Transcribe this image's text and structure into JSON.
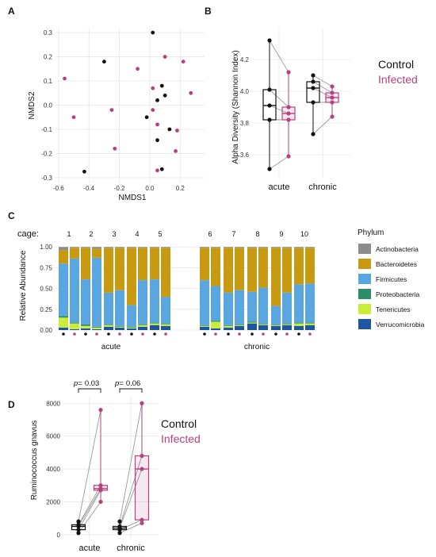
{
  "colors": {
    "control": "#111111",
    "infected": "#b5427f",
    "grid": "#e6e6e6",
    "line": "#9a9a9a"
  },
  "panels": {
    "A": {
      "letter": "A",
      "xlabel": "NMDS1",
      "ylabel": "NMDS2"
    },
    "B": {
      "letter": "B",
      "ylabel": "Alpha Diversity (Shannon Index)",
      "legend_control": "Control",
      "legend_infected": "Infected"
    },
    "C": {
      "letter": "C",
      "ylabel": "Relative Abundance",
      "cage_label": "cage:",
      "group_acute": "acute",
      "group_chronic": "chronic",
      "legend_title": "Phylum"
    },
    "D": {
      "letter": "D",
      "ylabel": "Ruminococcus gnavus",
      "p_acute": "0.03",
      "p_chronic": "0.06",
      "p_prefix": "p=",
      "legend_control": "Control",
      "legend_infected": "Infected"
    }
  },
  "chart_data": [
    {
      "type": "scatter",
      "panel": "A",
      "xlabel": "NMDS1",
      "ylabel": "NMDS2",
      "xlim": [
        -0.62,
        0.36
      ],
      "ylim": [
        -0.32,
        0.32
      ],
      "xticks": [
        -0.6,
        -0.4,
        -0.2,
        0.0,
        0.2
      ],
      "xtick_labels": [
        "-0.6",
        "-0.4",
        "-0.2",
        "0.0",
        "0.2"
      ],
      "yticks": [
        -0.3,
        -0.2,
        -0.1,
        0.0,
        0.1,
        0.2,
        0.3
      ],
      "ytick_labels": [
        "-0.3",
        "-0.2",
        "-0.1",
        "0.0",
        "0.1",
        "0.2",
        "0.3"
      ],
      "grid": true,
      "series": [
        {
          "name": "Control",
          "color": "#111111",
          "points": [
            [
              0.02,
              0.3
            ],
            [
              -0.3,
              0.18
            ],
            [
              0.08,
              0.08
            ],
            [
              0.1,
              0.04
            ],
            [
              0.05,
              0.02
            ],
            [
              -0.02,
              -0.05
            ],
            [
              0.13,
              -0.1
            ],
            [
              -0.43,
              -0.275
            ],
            [
              0.05,
              -0.145
            ],
            [
              0.08,
              -0.265
            ]
          ]
        },
        {
          "name": "Infected",
          "color": "#b5427f",
          "points": [
            [
              -0.56,
              0.11
            ],
            [
              -0.08,
              0.15
            ],
            [
              0.1,
              0.2
            ],
            [
              0.22,
              0.18
            ],
            [
              0.27,
              0.05
            ],
            [
              0.02,
              0.07
            ],
            [
              0.02,
              -0.02
            ],
            [
              -0.25,
              -0.02
            ],
            [
              0.05,
              -0.08
            ],
            [
              -0.23,
              -0.18
            ],
            [
              0.18,
              -0.105
            ],
            [
              0.17,
              -0.19
            ],
            [
              0.05,
              -0.27
            ],
            [
              -0.5,
              -0.05
            ]
          ]
        }
      ]
    },
    {
      "type": "box",
      "panel": "B",
      "ylabel": "Alpha Diversity (Shannon Index)",
      "ylim": [
        3.45,
        4.4
      ],
      "yticks": [
        3.6,
        3.8,
        4.0,
        4.2
      ],
      "ytick_labels": [
        "3.6",
        "3.8",
        "4.0",
        "4.2"
      ],
      "categories": [
        "acute",
        "chronic"
      ],
      "series": [
        {
          "name": "Control",
          "values": {
            "acute": [
              4.32,
              4.01,
              3.91,
              3.82,
              3.51
            ],
            "chronic": [
              4.1,
              4.06,
              4.02,
              3.93,
              3.73
            ]
          }
        },
        {
          "name": "Infected",
          "values": {
            "acute": [
              4.12,
              3.9,
              3.86,
              3.82,
              3.59
            ],
            "chronic": [
              4.03,
              3.99,
              3.96,
              3.93,
              3.84
            ]
          }
        }
      ]
    },
    {
      "type": "bar",
      "panel": "C",
      "stacked": true,
      "ylabel": "Relative Abundance",
      "ylim": [
        0,
        1.05
      ],
      "yticks": [
        0.0,
        0.25,
        0.5,
        0.75,
        1.0
      ],
      "ytick_labels": [
        "0.00",
        "0.25",
        "0.50",
        "0.75",
        "1.00"
      ],
      "groups": [
        "acute",
        "chronic"
      ],
      "cages": [
        "1",
        "2",
        "3",
        "4",
        "5",
        "6",
        "7",
        "8",
        "9",
        "10"
      ],
      "legend_title": "Phylum",
      "phyla": [
        "Actinobacteria",
        "Bacteroidetes",
        "Firmicutes",
        "Proteobacteria",
        "Tenericutes",
        "Verrucomicrobia"
      ],
      "phylum_colors": {
        "Actinobacteria": "#8c8c8c",
        "Bacteroidetes": "#c89a12",
        "Firmicutes": "#5aa6de",
        "Proteobacteria": "#2e8c68",
        "Tenericutes": "#c8ee3a",
        "Verrucomicrobia": "#1e57a0"
      },
      "bars": [
        {
          "cage": "1",
          "group": "Control",
          "values": [
            0.03,
            0.12,
            0.02,
            0.04,
            0.63,
            0.16
          ]
        },
        {
          "cage": "1",
          "group": "Infected",
          "values": [
            0.01,
            0.07,
            0.01,
            0.01,
            0.77,
            0.13
          ]
        },
        {
          "cage": "2",
          "group": "Control",
          "values": [
            0.02,
            0.03,
            0.02,
            0.01,
            0.54,
            0.38
          ]
        },
        {
          "cage": "2",
          "group": "Infected",
          "values": [
            0.01,
            0.02,
            0.01,
            0.02,
            0.83,
            0.11
          ]
        },
        {
          "cage": "3",
          "group": "Control",
          "values": [
            0.04,
            0.02,
            0.01,
            0.01,
            0.38,
            0.54
          ]
        },
        {
          "cage": "3",
          "group": "Infected",
          "values": [
            0.03,
            0.01,
            0.01,
            0.01,
            0.43,
            0.51
          ]
        },
        {
          "cage": "4",
          "group": "Control",
          "values": [
            0.02,
            0.01,
            0.01,
            0.01,
            0.26,
            0.69
          ]
        },
        {
          "cage": "4",
          "group": "Infected",
          "values": [
            0.04,
            0.02,
            0.01,
            0.01,
            0.53,
            0.39
          ]
        },
        {
          "cage": "5",
          "group": "Control",
          "values": [
            0.06,
            0.02,
            0.01,
            0.01,
            0.52,
            0.38
          ]
        },
        {
          "cage": "5",
          "group": "Infected",
          "values": [
            0.05,
            0.02,
            0.01,
            0.01,
            0.32,
            0.59
          ]
        },
        {
          "cage": "6",
          "group": "Control",
          "values": [
            0.04,
            0.01,
            0.01,
            0.01,
            0.54,
            0.39
          ]
        },
        {
          "cage": "6",
          "group": "Infected",
          "values": [
            0.02,
            0.08,
            0.01,
            0.01,
            0.42,
            0.46
          ]
        },
        {
          "cage": "7",
          "group": "Control",
          "values": [
            0.03,
            0.02,
            0.01,
            0.01,
            0.39,
            0.54
          ]
        },
        {
          "cage": "7",
          "group": "Infected",
          "values": [
            0.05,
            0.01,
            0.01,
            0.01,
            0.41,
            0.51
          ]
        },
        {
          "cage": "8",
          "group": "Control",
          "values": [
            0.08,
            0.01,
            0.01,
            0.01,
            0.36,
            0.53
          ]
        },
        {
          "cage": "8",
          "group": "Infected",
          "values": [
            0.06,
            0.01,
            0.01,
            0.01,
            0.43,
            0.48
          ]
        },
        {
          "cage": "9",
          "group": "Control",
          "values": [
            0.05,
            0.01,
            0.01,
            0.01,
            0.22,
            0.7
          ]
        },
        {
          "cage": "9",
          "group": "Infected",
          "values": [
            0.06,
            0.01,
            0.01,
            0.01,
            0.37,
            0.54
          ]
        },
        {
          "cage": "10",
          "group": "Control",
          "values": [
            0.05,
            0.03,
            0.01,
            0.01,
            0.46,
            0.44
          ]
        },
        {
          "cage": "10",
          "group": "Infected",
          "values": [
            0.06,
            0.02,
            0.01,
            0.01,
            0.47,
            0.43
          ]
        }
      ]
    },
    {
      "type": "box",
      "panel": "D",
      "ylabel": "Ruminococcus gnavus",
      "ylim": [
        -300,
        8400
      ],
      "yticks": [
        0,
        2000,
        4000,
        6000,
        8000
      ],
      "ytick_labels": [
        "0",
        "2000",
        "4000",
        "6000",
        "8000"
      ],
      "categories": [
        "acute",
        "chronic"
      ],
      "annotations": [
        {
          "category": "acute",
          "text": "p= 0.03"
        },
        {
          "category": "chronic",
          "text": "p= 0.06"
        }
      ],
      "series": [
        {
          "name": "Control",
          "values": {
            "acute": [
              100,
              300,
              500,
              600,
              800
            ],
            "chronic": [
              100,
              300,
              400,
              500,
              800
            ]
          }
        },
        {
          "name": "Infected",
          "values": {
            "acute": [
              2000,
              2700,
              2800,
              3000,
              7600
            ],
            "chronic": [
              700,
              900,
              4000,
              4800,
              8000
            ]
          }
        }
      ]
    }
  ]
}
